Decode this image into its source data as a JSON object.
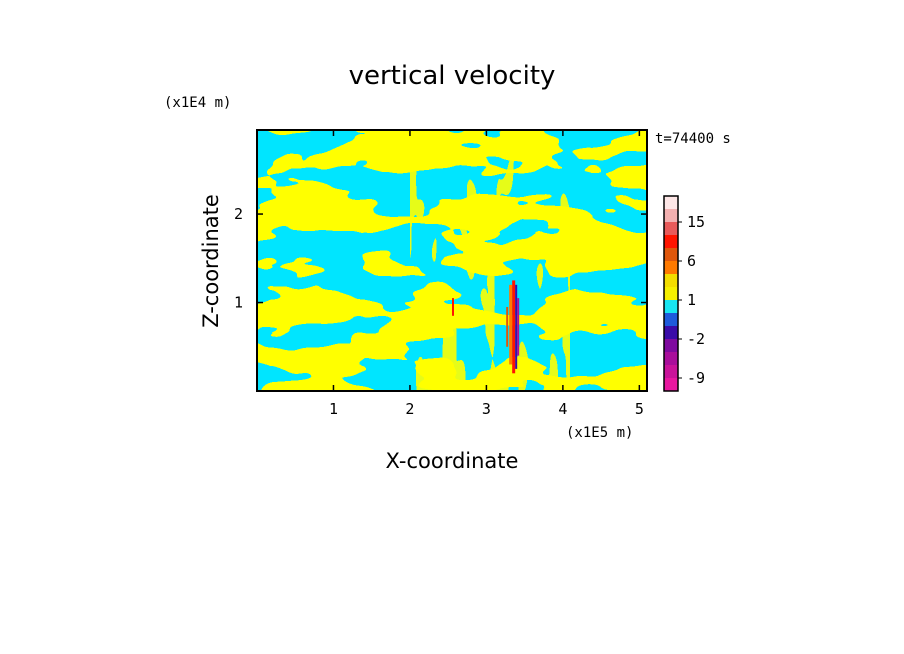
{
  "chart_data": {
    "type": "heatmap",
    "title": "vertical velocity",
    "xlabel": "X-coordinate",
    "ylabel": "Z-coordinate",
    "x_unit": "(x1E5 m)",
    "y_unit": "(x1E4 m)",
    "time_label": "t=74400 s",
    "xlim": [
      0.0,
      5.1
    ],
    "ylim": [
      0.0,
      2.95
    ],
    "x_ticks": [
      1,
      2,
      3,
      4,
      5
    ],
    "y_ticks": [
      1,
      2
    ],
    "colorbar": {
      "levels": [
        -12,
        -9,
        -6,
        -4,
        -2,
        -1,
        0,
        1,
        2,
        4,
        6,
        9,
        12,
        15,
        18,
        21
      ],
      "colors": [
        "#e8179f",
        "#c9139a",
        "#a90e9b",
        "#7f0a9f",
        "#3a0ca8",
        "#1e5bdc",
        "#18e6f2",
        "#f5f000",
        "#f3dd00",
        "#ff7a00",
        "#e0570b",
        "#ff1500",
        "#e85a5a",
        "#f3b0b0",
        "#fde6e6"
      ],
      "tick_labels": [
        "15",
        "6",
        "1",
        "-2",
        "-9"
      ],
      "tick_values": [
        15,
        6,
        1,
        -2,
        -9
      ]
    },
    "dominant_colors": {
      "positive": "#ffff00",
      "negative": "#00e5ff"
    }
  }
}
